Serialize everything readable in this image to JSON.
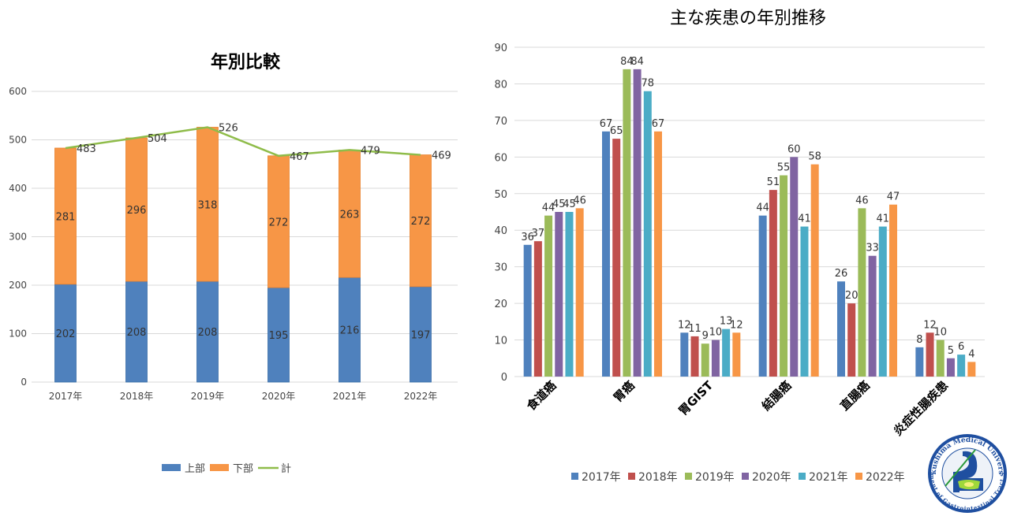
{
  "chart_data": [
    {
      "type": "bar",
      "stacked": true,
      "title": "年別比較",
      "categories": [
        "2017年",
        "2018年",
        "2019年",
        "2020年",
        "2021年",
        "2022年"
      ],
      "series": [
        {
          "name": "上部",
          "kind": "bar",
          "color": "#4f81bd",
          "values": [
            202,
            208,
            208,
            195,
            216,
            197
          ]
        },
        {
          "name": "下部",
          "kind": "bar",
          "color": "#f79646",
          "values": [
            281,
            296,
            318,
            272,
            263,
            272
          ]
        },
        {
          "name": "計",
          "kind": "line",
          "color": "#8fbc4a",
          "values": [
            483,
            504,
            526,
            467,
            479,
            469
          ]
        }
      ],
      "yticks": [
        "0",
        "100",
        "200",
        "300",
        "400",
        "500",
        "600"
      ],
      "ylim": [
        0,
        600
      ],
      "grid": true,
      "legend": "bottom"
    },
    {
      "type": "bar",
      "title": "主な疾患の年別推移",
      "categories": [
        "食道癌",
        "胃癌",
        "胃GIST",
        "結腸癌",
        "直腸癌",
        "炎症性腸疾患"
      ],
      "series": [
        {
          "name": "2017年",
          "color": "#4f81bd",
          "values": [
            36,
            67,
            12,
            44,
            26,
            8
          ]
        },
        {
          "name": "2018年",
          "color": "#c0504d",
          "values": [
            37,
            65,
            11,
            51,
            20,
            12
          ]
        },
        {
          "name": "2019年",
          "color": "#9bbb59",
          "values": [
            44,
            84,
            9,
            55,
            46,
            10
          ]
        },
        {
          "name": "2020年",
          "color": "#8064a2",
          "values": [
            45,
            84,
            10,
            60,
            33,
            5
          ]
        },
        {
          "name": "2021年",
          "color": "#4bacc6",
          "values": [
            45,
            78,
            13,
            41,
            41,
            6
          ]
        },
        {
          "name": "2022年",
          "color": "#f79646",
          "values": [
            46,
            67,
            12,
            58,
            47,
            4
          ]
        }
      ],
      "yticks": [
        "0",
        "10",
        "20",
        "30",
        "40",
        "50",
        "60",
        "70",
        "80",
        "90"
      ],
      "ylim": [
        0,
        90
      ],
      "grid": true,
      "legend": "bottom"
    }
  ],
  "logo": {
    "text_top": "Fukushima Medical University",
    "text_bottom": "Department of Gastrointestinal Tract Surgery"
  }
}
